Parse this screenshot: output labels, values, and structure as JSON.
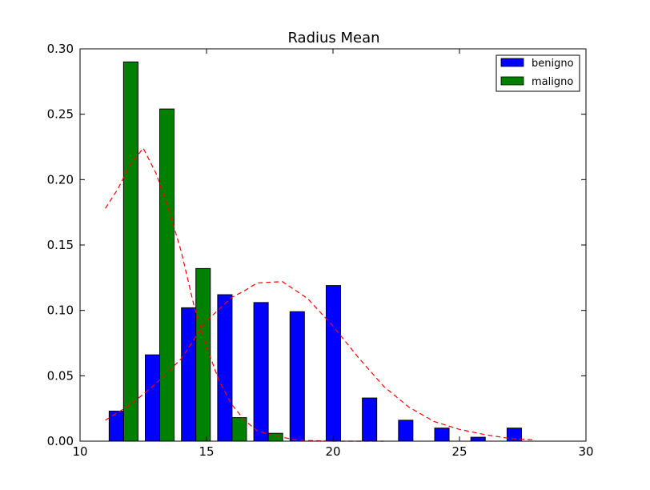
{
  "chart_data": {
    "type": "bar",
    "title": "Radius Mean",
    "xlabel": "",
    "ylabel": "",
    "xlim": [
      10,
      30
    ],
    "ylim": [
      0,
      0.3
    ],
    "xticks": [
      10,
      15,
      20,
      25,
      30
    ],
    "yticks": [
      0.0,
      0.05,
      0.1,
      0.15,
      0.2,
      0.25,
      0.3
    ],
    "xtick_labels": [
      "10",
      "15",
      "20",
      "25",
      "30"
    ],
    "ytick_labels": [
      "0.00",
      "0.05",
      "0.10",
      "0.15",
      "0.20",
      "0.25",
      "0.30"
    ],
    "grid": false,
    "legend_position": "top-right",
    "series": [
      {
        "name": "benigno",
        "color": "#0000ff",
        "bars": [
          {
            "x0": 11.15,
            "x1": 11.72,
            "y": 0.023
          },
          {
            "x0": 12.58,
            "x1": 13.15,
            "y": 0.066
          },
          {
            "x0": 14.01,
            "x1": 14.58,
            "y": 0.102
          },
          {
            "x0": 15.44,
            "x1": 16.01,
            "y": 0.112
          },
          {
            "x0": 16.87,
            "x1": 17.44,
            "y": 0.106
          },
          {
            "x0": 18.3,
            "x1": 18.87,
            "y": 0.099
          },
          {
            "x0": 19.73,
            "x1": 20.3,
            "y": 0.119
          },
          {
            "x0": 21.16,
            "x1": 21.73,
            "y": 0.033
          },
          {
            "x0": 22.59,
            "x1": 23.16,
            "y": 0.016
          },
          {
            "x0": 24.02,
            "x1": 24.59,
            "y": 0.01
          },
          {
            "x0": 25.45,
            "x1": 26.02,
            "y": 0.003
          },
          {
            "x0": 26.88,
            "x1": 27.45,
            "y": 0.01
          }
        ]
      },
      {
        "name": "maligno",
        "color": "#008000",
        "bars": [
          {
            "x0": 11.72,
            "x1": 12.29,
            "y": 0.29
          },
          {
            "x0": 13.15,
            "x1": 13.72,
            "y": 0.254
          },
          {
            "x0": 14.58,
            "x1": 15.15,
            "y": 0.132
          },
          {
            "x0": 16.01,
            "x1": 16.58,
            "y": 0.018
          },
          {
            "x0": 17.44,
            "x1": 18.01,
            "y": 0.006
          }
        ]
      }
    ],
    "curves": [
      {
        "color": "#ff0000",
        "style": "dashed",
        "x": [
          11.0,
          11.5,
          12.0,
          12.5,
          13.0,
          13.5,
          14.0,
          14.5,
          15.0,
          15.5,
          16.0,
          16.5,
          17.0,
          17.5,
          18.0,
          18.5,
          19.0,
          20.0,
          21.0,
          22.0
        ],
        "y": [
          0.178,
          0.193,
          0.212,
          0.224,
          0.205,
          0.178,
          0.145,
          0.104,
          0.072,
          0.046,
          0.028,
          0.016,
          0.008,
          0.005,
          0.003,
          0.001,
          0.0005,
          0.0,
          0.0,
          0.0
        ]
      },
      {
        "color": "#ff0000",
        "style": "dashed",
        "x": [
          11.0,
          12.0,
          13.0,
          14.0,
          15.0,
          16.0,
          16.5,
          17.0,
          18.0,
          19.0,
          20.0,
          21.0,
          22.0,
          23.0,
          24.0,
          25.0,
          26.0,
          27.0,
          28.0
        ],
        "y": [
          0.016,
          0.028,
          0.044,
          0.063,
          0.092,
          0.11,
          0.115,
          0.121,
          0.122,
          0.109,
          0.088,
          0.064,
          0.042,
          0.026,
          0.015,
          0.009,
          0.005,
          0.002,
          0.001
        ]
      }
    ]
  }
}
